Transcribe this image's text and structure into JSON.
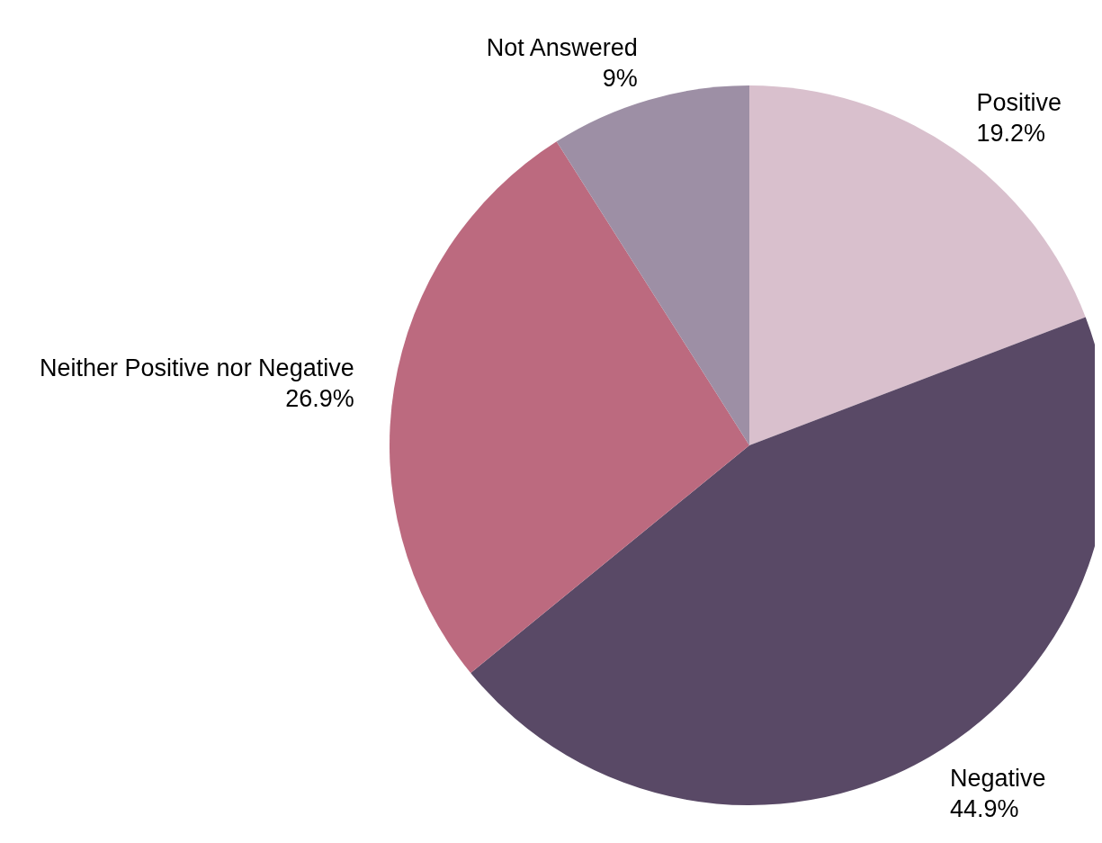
{
  "chart_data": {
    "type": "pie",
    "categories": [
      "Positive",
      "Negative",
      "Neither Positive nor Negative",
      "Not Answered"
    ],
    "values": [
      19.2,
      44.9,
      26.9,
      9
    ],
    "value_labels": [
      "19.2%",
      "44.9%",
      "26.9%",
      "9%"
    ],
    "colors": [
      "#d9c0cd",
      "#594966",
      "#bc6a7f",
      "#9d8fa5"
    ],
    "legend": false
  }
}
